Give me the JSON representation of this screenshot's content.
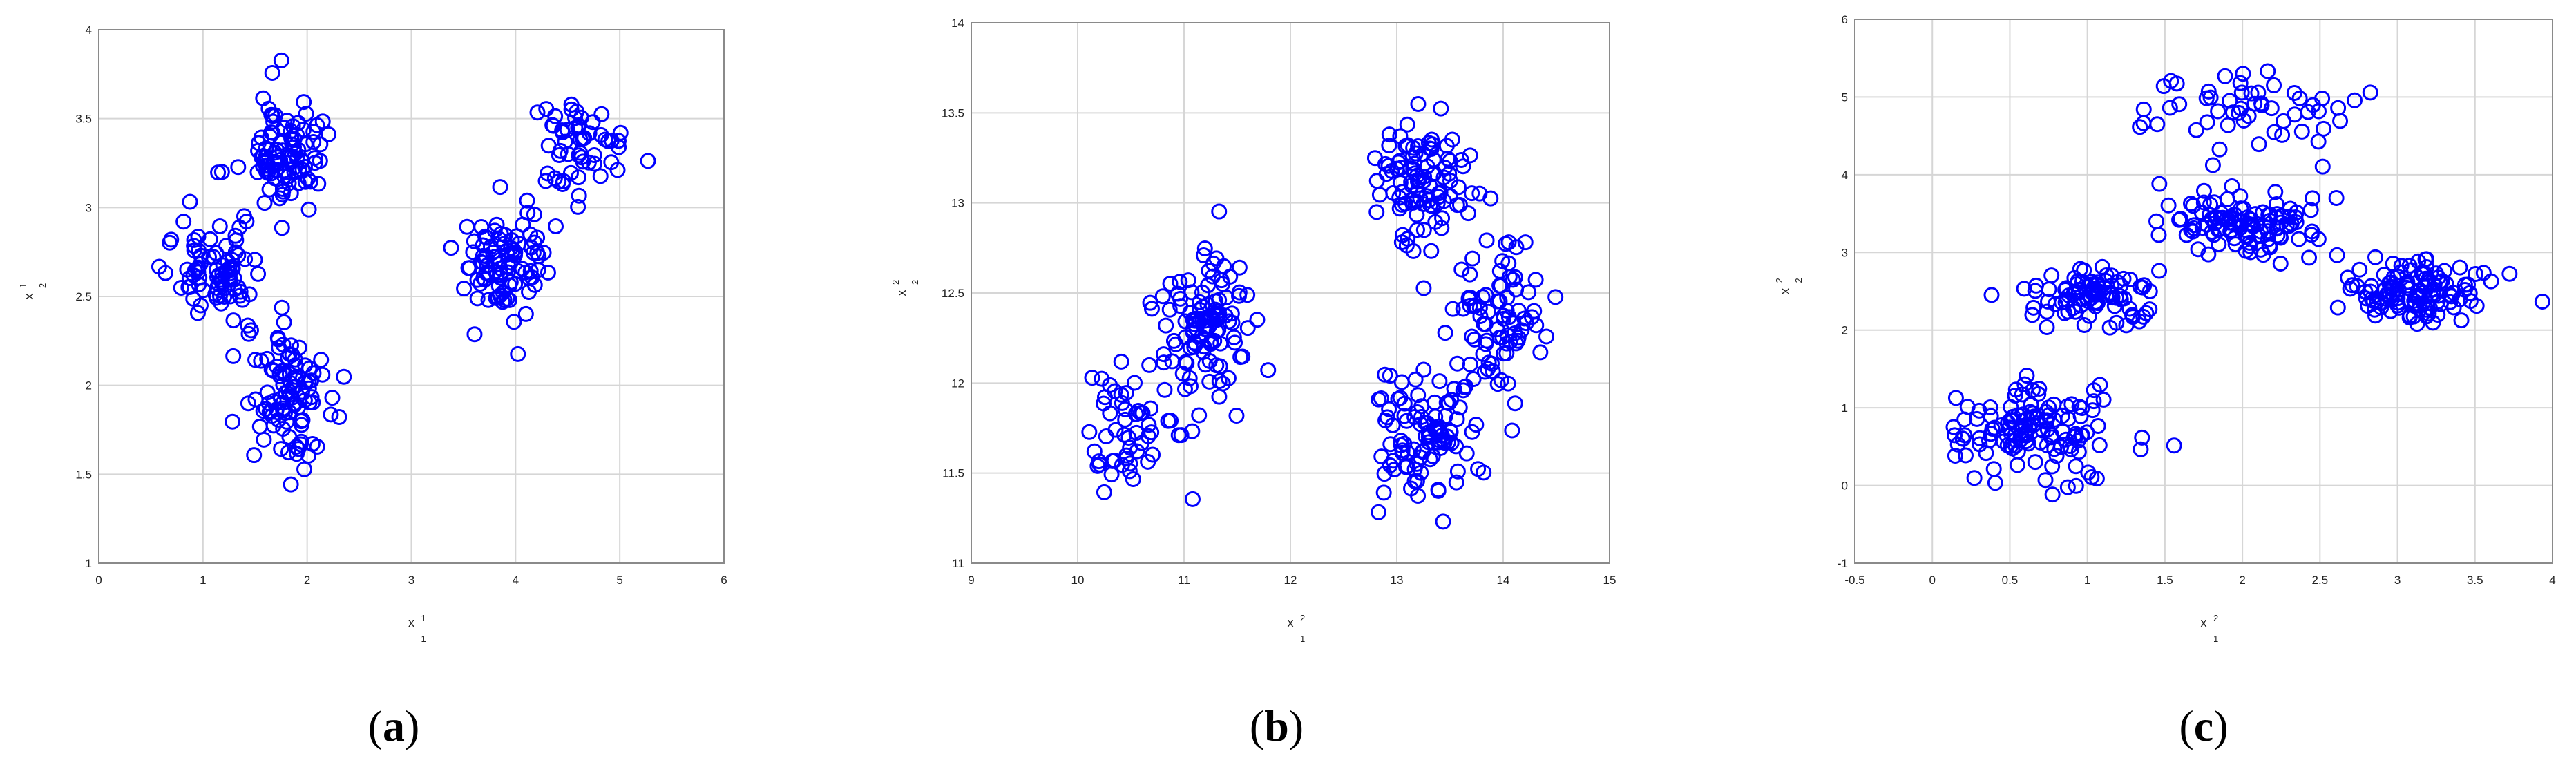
{
  "chart_data": [
    {
      "type": "scatter",
      "panel_label": "a",
      "xlabel": "x",
      "xlabel_sup": "1",
      "xlabel_sub": "1",
      "ylabel": "x",
      "ylabel_sup": "1",
      "ylabel_sub": "2",
      "xlim": [
        0,
        6
      ],
      "ylim": [
        1,
        4
      ],
      "xticks": [
        0,
        1,
        2,
        3,
        4,
        5,
        6
      ],
      "yticks": [
        1,
        1.5,
        2,
        2.5,
        3,
        3.5,
        4
      ],
      "grid": true,
      "marker": "open-circle",
      "color": "#0000ff",
      "clusters": [
        {
          "cx": 1.75,
          "cy": 3.3,
          "sx": 0.22,
          "sy": 0.17,
          "n": 100
        },
        {
          "cx": 1.1,
          "cy": 2.65,
          "sx": 0.22,
          "sy": 0.16,
          "n": 85
        },
        {
          "cx": 1.8,
          "cy": 1.95,
          "sx": 0.2,
          "sy": 0.2,
          "n": 100
        },
        {
          "cx": 3.9,
          "cy": 2.68,
          "sx": 0.22,
          "sy": 0.17,
          "n": 95
        },
        {
          "cx": 4.6,
          "cy": 3.35,
          "sx": 0.2,
          "sy": 0.16,
          "n": 55
        }
      ]
    },
    {
      "type": "scatter",
      "panel_label": "b",
      "xlabel": "x",
      "xlabel_sup": "2",
      "xlabel_sub": "1",
      "ylabel": "x",
      "ylabel_sup": "2",
      "ylabel_sub": "2",
      "xlim": [
        9,
        15
      ],
      "ylim": [
        11,
        14
      ],
      "xticks": [
        9,
        10,
        11,
        12,
        13,
        14,
        15
      ],
      "yticks": [
        11,
        11.5,
        12,
        12.5,
        13,
        13.5,
        14
      ],
      "grid": true,
      "marker": "open-circle",
      "color": "#0000ff",
      "clusters": [
        {
          "cx": 10.5,
          "cy": 11.7,
          "sx": 0.25,
          "sy": 0.18,
          "n": 55
        },
        {
          "cx": 11.2,
          "cy": 12.3,
          "sx": 0.2,
          "sy": 0.2,
          "n": 110
        },
        {
          "cx": 13.25,
          "cy": 13.1,
          "sx": 0.2,
          "sy": 0.17,
          "n": 100
        },
        {
          "cx": 13.95,
          "cy": 12.35,
          "sx": 0.22,
          "sy": 0.2,
          "n": 85
        },
        {
          "cx": 13.3,
          "cy": 11.75,
          "sx": 0.22,
          "sy": 0.2,
          "n": 100
        }
      ]
    },
    {
      "type": "scatter",
      "panel_label": "c",
      "xlabel": "x",
      "xlabel_sup": "2",
      "xlabel_sub": "1",
      "ylabel": "x",
      "ylabel_sup": "2",
      "ylabel_sub": "2",
      "xlim": [
        -0.5,
        4
      ],
      "ylim": [
        -1,
        6
      ],
      "xticks": [
        -0.5,
        0,
        0.5,
        1,
        1.5,
        2,
        2.5,
        3,
        3.5,
        4
      ],
      "yticks": [
        -1,
        0,
        1,
        2,
        3,
        4,
        5,
        6
      ],
      "grid": true,
      "marker": "open-circle",
      "color": "#0000ff",
      "clusters": [
        {
          "cx": 0.65,
          "cy": 0.65,
          "sx": 0.28,
          "sy": 0.3,
          "n": 130
        },
        {
          "cx": 1.05,
          "cy": 2.45,
          "sx": 0.22,
          "sy": 0.18,
          "n": 90
        },
        {
          "cx": 2.0,
          "cy": 3.4,
          "sx": 0.25,
          "sy": 0.22,
          "n": 110
        },
        {
          "cx": 3.1,
          "cy": 2.5,
          "sx": 0.22,
          "sy": 0.18,
          "n": 120
        },
        {
          "cx": 2.05,
          "cy": 4.9,
          "sx": 0.35,
          "sy": 0.3,
          "n": 55
        }
      ]
    }
  ]
}
